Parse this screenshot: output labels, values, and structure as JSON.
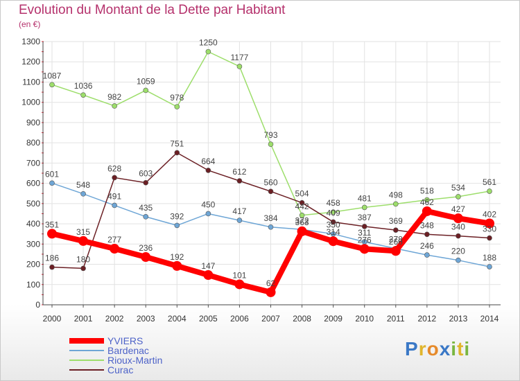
{
  "title": "Evolution du Montant de la Dette par Habitant",
  "subtitle": "(en €)",
  "logo": {
    "text": "Proxiti",
    "letters": [
      {
        "ch": "P",
        "color": "#3a78c6"
      },
      {
        "ch": "r",
        "color": "#e0b52c"
      },
      {
        "ch": "o",
        "color": "#e68a2a"
      },
      {
        "ch": "x",
        "color": "#3a78c6"
      },
      {
        "ch": "i",
        "color": "#7ab640"
      },
      {
        "ch": "t",
        "color": "#e0b52c"
      },
      {
        "ch": "i",
        "color": "#7ab640"
      }
    ]
  },
  "chart_data": {
    "type": "line",
    "x": [
      "2000",
      "2001",
      "2002",
      "2003",
      "2004",
      "2005",
      "2006",
      "2007",
      "2008",
      "2009",
      "2010",
      "2011",
      "2012",
      "2013",
      "2014"
    ],
    "ylim": [
      0,
      1300
    ],
    "yticks": [
      0,
      100,
      200,
      300,
      400,
      500,
      600,
      700,
      800,
      900,
      1000,
      1100,
      1200,
      1300
    ],
    "grid": true,
    "legend_position": "bottom-left",
    "series": [
      {
        "name": "YVIERS",
        "color": "#ff0000",
        "width": 8,
        "labels": [
          "351",
          "315",
          "277",
          "236",
          "192",
          "147",
          "101",
          "62",
          "363",
          "314",
          "276",
          "266",
          "462",
          "427",
          "402"
        ],
        "values": [
          351,
          315,
          277,
          236,
          192,
          147,
          101,
          62,
          363,
          314,
          276,
          266,
          462,
          427,
          402
        ]
      },
      {
        "name": "Bardenac",
        "color": "#6ea6d6",
        "width": 1.5,
        "labels": [
          "601",
          "548",
          "491",
          "435",
          "392",
          "450",
          "417",
          "384",
          "372",
          "350",
          "311",
          "278",
          "246",
          "220",
          "188"
        ],
        "values": [
          601,
          548,
          491,
          435,
          392,
          450,
          417,
          384,
          372,
          350,
          311,
          278,
          246,
          220,
          188
        ]
      },
      {
        "name": "Rioux-Martin",
        "color": "#9dde6b",
        "width": 1.5,
        "labels": [
          "1087",
          "1036",
          "982",
          "1059",
          "978",
          "1250",
          "1177",
          "793",
          "442",
          "458",
          "481",
          "498",
          "518",
          "534",
          "561"
        ],
        "values": [
          1087,
          1036,
          982,
          1059,
          978,
          1250,
          1177,
          793,
          442,
          458,
          481,
          498,
          518,
          534,
          561
        ]
      },
      {
        "name": "Curac",
        "color": "#6b1f24",
        "width": 1.5,
        "labels": [
          "186",
          "180",
          "628",
          "603",
          "751",
          "664",
          "612",
          "560",
          "504",
          "409",
          "387",
          "369",
          "348",
          "340",
          "330"
        ],
        "values": [
          186,
          180,
          628,
          603,
          751,
          664,
          612,
          560,
          504,
          409,
          387,
          369,
          348,
          340,
          330
        ]
      }
    ]
  }
}
